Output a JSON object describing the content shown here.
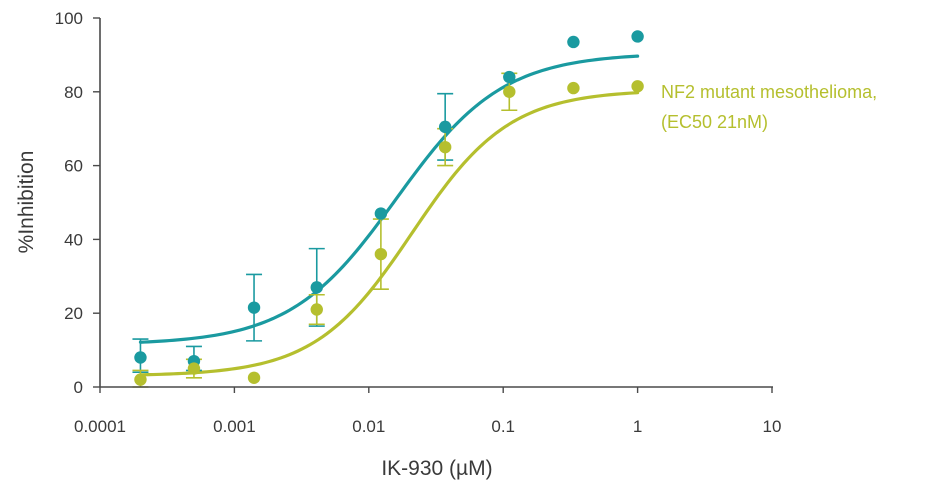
{
  "chart_data": {
    "type": "scatter",
    "title": "",
    "xlabel": "IK-930 (µM)",
    "ylabel": "%Inhibition",
    "xscale": "log",
    "xlim": [
      0.0001,
      10
    ],
    "ylim": [
      0,
      100
    ],
    "x_ticks": [
      "0.0001",
      "0.001",
      "0.01",
      "0.1",
      "1",
      "10"
    ],
    "y_ticks": [
      "0",
      "20",
      "40",
      "60",
      "80",
      "100"
    ],
    "grid": false,
    "colors": {
      "teal": "#1a9aa0",
      "olive": "#b5bf2e",
      "axis": "#4a4a4a"
    },
    "annotation": {
      "lines": [
        "NF2 mutant mesothelioma,",
        "(EC50 21nM)"
      ],
      "color": "#b5bf2e"
    },
    "series": [
      {
        "color": "#1a9aa0",
        "x": [
          0.0002,
          0.0005,
          0.0014,
          0.0041,
          0.0123,
          0.037,
          0.111,
          0.333,
          1.0
        ],
        "y": [
          8,
          7,
          21.5,
          27,
          47,
          70.5,
          84,
          93.5,
          95
        ],
        "err_low": [
          4,
          2.5,
          9,
          10.5,
          0,
          9,
          0,
          0,
          0
        ],
        "err_high": [
          5,
          4,
          9,
          10.5,
          0,
          9,
          0,
          0,
          0
        ],
        "fit": {
          "bottom": 11.5,
          "top": 90.5,
          "ec50": 0.016,
          "hill": 1.1
        }
      },
      {
        "color": "#b5bf2e",
        "x": [
          0.0002,
          0.0005,
          0.0014,
          0.0041,
          0.0123,
          0.037,
          0.111,
          0.333,
          1.0
        ],
        "y": [
          2,
          5,
          2.5,
          21,
          36,
          65,
          80,
          81,
          81.5
        ],
        "err_low": [
          2,
          2.5,
          0,
          4,
          9.5,
          5,
          5,
          0,
          0
        ],
        "err_high": [
          2.5,
          2.5,
          0,
          4,
          9.5,
          5,
          5,
          0,
          0
        ],
        "fit": {
          "bottom": 3,
          "top": 80.5,
          "ec50": 0.021,
          "hill": 1.2
        }
      }
    ]
  }
}
